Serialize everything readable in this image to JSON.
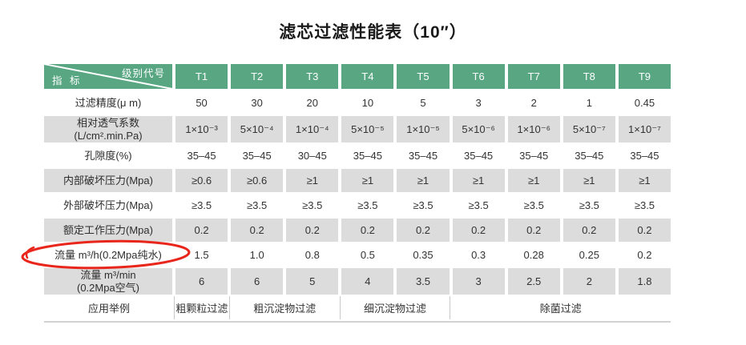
{
  "title": "滤芯过滤性能表（10″）",
  "table": {
    "corner": {
      "top_right": "级别代号",
      "bottom_left": "指 标"
    },
    "columns": [
      "T1",
      "T2",
      "T3",
      "T4",
      "T5",
      "T6",
      "T7",
      "T8",
      "T9"
    ],
    "rows": [
      {
        "label_lines": [
          "过滤精度(μ m)"
        ],
        "shaded": false,
        "values": [
          "50",
          "30",
          "20",
          "10",
          "5",
          "3",
          "2",
          "1",
          "0.45"
        ]
      },
      {
        "label_lines": [
          "相对透气系数",
          "(L/cm².min.Pa)"
        ],
        "shaded": true,
        "values": [
          "1×10⁻³",
          "5×10⁻⁴",
          "1×10⁻⁴",
          "5×10⁻⁵",
          "1×10⁻⁵",
          "5×10⁻⁶",
          "1×10⁻⁶",
          "5×10⁻⁷",
          "1×10⁻⁷"
        ]
      },
      {
        "label_lines": [
          "孔隙度(%)"
        ],
        "shaded": false,
        "values": [
          "35–45",
          "35–45",
          "30–45",
          "35–45",
          "35–45",
          "35–45",
          "35–45",
          "35–45",
          "35–45"
        ]
      },
      {
        "label_lines": [
          "内部破坏压力(Mpa)"
        ],
        "shaded": true,
        "values": [
          "≥0.6",
          "≥0.6",
          "≥1",
          "≥1",
          "≥1",
          "≥1",
          "≥1",
          "≥1",
          "≥1"
        ]
      },
      {
        "label_lines": [
          "外部破坏压力(Mpa)"
        ],
        "shaded": false,
        "values": [
          "≥3.5",
          "≥3.5",
          "≥3.5",
          "≥3.5",
          "≥3.5",
          "≥3.5",
          "≥3.5",
          "≥3.5",
          "≥3.5"
        ]
      },
      {
        "label_lines": [
          "额定工作压力(Mpa)"
        ],
        "shaded": true,
        "values": [
          "0.2",
          "0.2",
          "0.2",
          "0.2",
          "0.2",
          "0.2",
          "0.2",
          "0.2",
          "0.2"
        ]
      },
      {
        "label_lines": [
          "流量 m³/h(0.2Mpa纯水)"
        ],
        "shaded": false,
        "circled": true,
        "values": [
          "1.5",
          "1.0",
          "0.8",
          "0.5",
          "0.35",
          "0.3",
          "0.28",
          "0.25",
          "0.2"
        ]
      },
      {
        "label_lines": [
          "流量 m³/min",
          "(0.2Mpa空气)"
        ],
        "shaded": true,
        "values": [
          "6",
          "6",
          "5",
          "4",
          "3.5",
          "3",
          "2.5",
          "2",
          "1.8"
        ]
      }
    ],
    "application_row": {
      "label": "应用举例",
      "cells": [
        {
          "text": "粗颗粒过滤",
          "span": 1
        },
        {
          "text": "粗沉淀物过滤",
          "span": 2
        },
        {
          "text": "细沉淀物过滤",
          "span": 2
        },
        {
          "text": "除菌过滤",
          "span": 4
        }
      ]
    }
  },
  "annotation": {
    "type": "hand-drawn-red-circle",
    "target": "流量 m³/h(0.2Mpa纯水)",
    "color": "#e8261b"
  },
  "colors": {
    "header_green": "#58a682",
    "row_shade_gray": "#dcdcdc",
    "annotation_red": "#e8261b",
    "text": "#333333"
  }
}
